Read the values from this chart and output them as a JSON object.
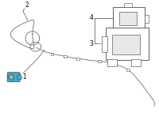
{
  "bg_color": "#ffffff",
  "line_color": "#707070",
  "part1_color": "#3ab5d4",
  "part1_color2": "#5ecde0",
  "part_outline_color": "#555555",
  "bracket_face": "#e8e8e8",
  "bracket_edge": "#606060",
  "label1": "1",
  "label2": "2",
  "label3": "3",
  "label4": "4",
  "label_fontsize": 5.5,
  "figsize": [
    2.0,
    1.47
  ],
  "dpi": 100
}
